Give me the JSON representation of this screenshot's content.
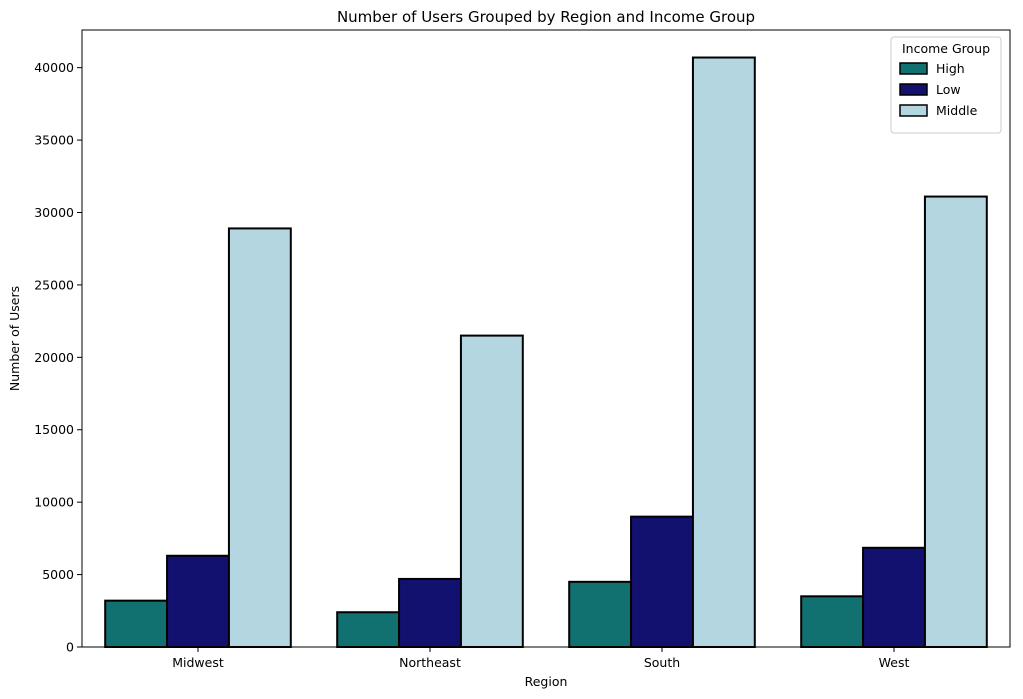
{
  "chart_data": {
    "type": "bar",
    "title": "Number of Users Grouped by Region and Income Group",
    "xlabel": "Region",
    "ylabel": "Number of Users",
    "categories": [
      "Midwest",
      "Northeast",
      "South",
      "West"
    ],
    "series": [
      {
        "name": "High",
        "color": "#117070",
        "values": [
          3200,
          2400,
          4500,
          3500
        ]
      },
      {
        "name": "Low",
        "color": "#121170",
        "values": [
          6300,
          4700,
          9000,
          6850
        ]
      },
      {
        "name": "Middle",
        "color": "#b3d6e1",
        "values": [
          28900,
          21500,
          40700,
          31100
        ]
      }
    ],
    "ylim": [
      0,
      42600
    ],
    "yticks": [
      0,
      5000,
      10000,
      15000,
      20000,
      25000,
      30000,
      35000,
      40000
    ],
    "ytick_labels": [
      "0",
      "5000",
      "10000",
      "15000",
      "20000",
      "25000",
      "30000",
      "35000",
      "40000"
    ],
    "legend": {
      "title": "Income Group",
      "placement": "top-right"
    },
    "grid": false,
    "bar_edge_color": "#000000"
  }
}
